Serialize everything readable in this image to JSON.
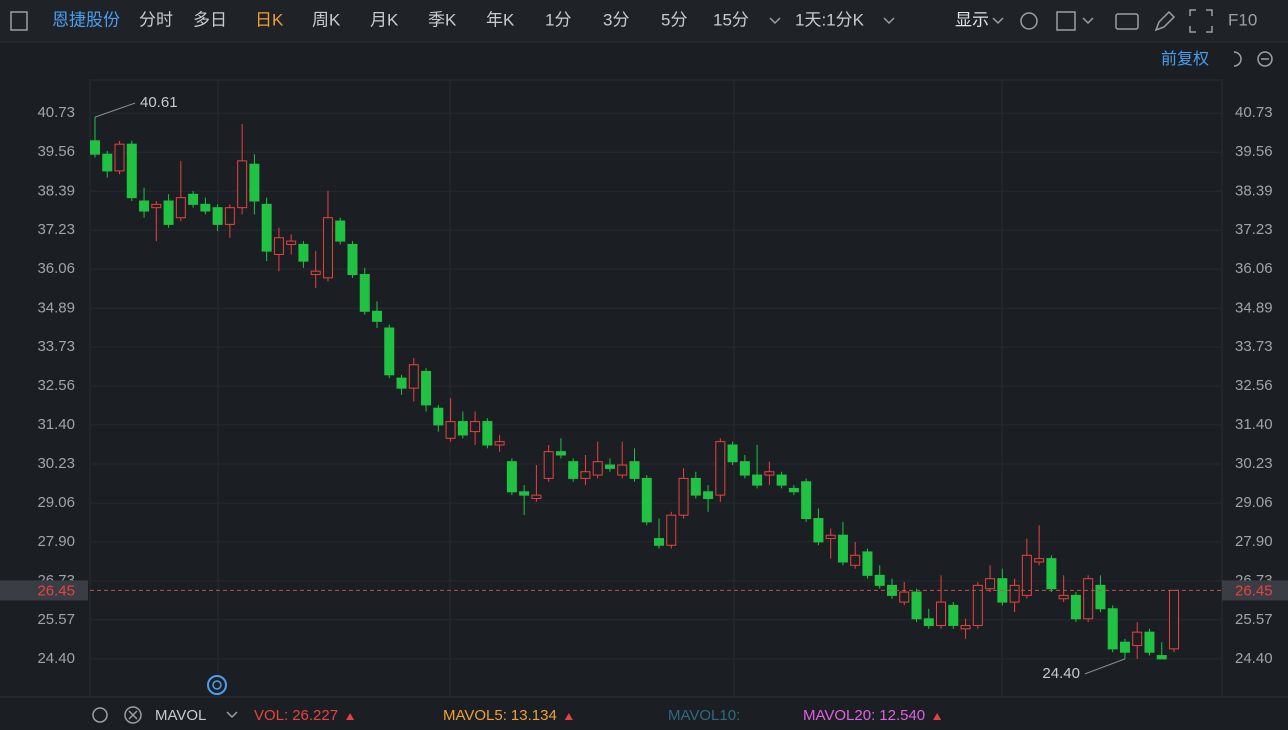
{
  "toolbar": {
    "stock": "恩捷股份",
    "tabs": [
      "分时",
      "多日",
      "日K",
      "周K",
      "月K",
      "季K",
      "年K",
      "1分",
      "3分",
      "5分",
      "15分"
    ],
    "active_tab": 2,
    "period_select": "1天:1分K",
    "display": "显示",
    "f10": "F10"
  },
  "adjust": "前复权",
  "chart_data": {
    "type": "candlestick",
    "open": [
      39.9,
      39.5,
      39.0,
      39.8,
      38.1,
      37.9,
      38.1,
      37.6,
      38.3,
      38.0,
      37.9,
      37.4,
      37.9,
      39.2,
      38.0,
      36.5,
      36.8,
      36.8,
      35.9,
      35.8,
      37.5,
      36.8,
      35.9,
      34.8,
      34.3,
      32.8,
      32.5,
      33.0,
      31.9,
      31.0,
      31.5,
      31.2,
      31.5,
      30.8,
      30.3,
      29.4,
      29.2,
      29.8,
      30.6,
      30.3,
      29.8,
      29.9,
      30.2,
      29.9,
      30.3,
      29.8,
      28.0,
      27.8,
      28.7,
      29.8,
      29.4,
      29.3,
      30.8,
      30.3,
      29.9,
      29.9,
      29.9,
      29.5,
      29.7,
      28.6,
      28.0,
      28.1,
      27.2,
      27.6,
      26.9,
      26.6,
      26.1,
      26.4,
      25.6,
      25.4,
      26.0,
      25.3,
      25.4,
      26.5,
      26.8,
      26.1,
      26.3,
      27.3,
      27.4,
      26.2,
      26.3,
      25.6,
      26.6,
      25.9,
      24.9,
      24.8,
      25.2,
      24.5,
      24.7
    ],
    "high": [
      40.61,
      39.6,
      39.9,
      39.9,
      38.5,
      38.1,
      38.3,
      39.3,
      38.4,
      38.2,
      38.0,
      38.0,
      40.4,
      39.5,
      38.2,
      37.3,
      37.1,
      36.9,
      36.6,
      38.4,
      37.6,
      36.9,
      36.1,
      35.1,
      34.4,
      32.9,
      33.4,
      33.1,
      32.0,
      32.2,
      31.8,
      31.8,
      31.6,
      31.1,
      30.4,
      29.6,
      30.2,
      30.8,
      31.0,
      30.4,
      30.5,
      30.9,
      30.4,
      30.9,
      30.7,
      29.9,
      28.6,
      28.8,
      30.1,
      30.0,
      29.6,
      31.0,
      30.9,
      30.5,
      30.8,
      30.3,
      30.0,
      29.6,
      29.8,
      28.9,
      28.3,
      28.5,
      27.9,
      27.7,
      27.2,
      26.8,
      26.7,
      26.5,
      25.9,
      26.9,
      26.1,
      25.6,
      26.7,
      27.2,
      27.1,
      26.8,
      28.0,
      28.4,
      27.5,
      26.9,
      26.4,
      26.9,
      26.9,
      26.0,
      25.0,
      25.5,
      25.3,
      24.9,
      26.45
    ],
    "low": [
      39.4,
      38.8,
      38.9,
      38.1,
      37.6,
      36.9,
      37.3,
      37.5,
      37.9,
      37.7,
      37.2,
      37.0,
      37.7,
      37.7,
      36.3,
      36.0,
      36.5,
      36.1,
      35.5,
      35.7,
      36.8,
      35.8,
      34.7,
      34.3,
      32.8,
      32.3,
      32.1,
      31.8,
      31.2,
      30.9,
      31.0,
      30.8,
      30.7,
      30.6,
      29.3,
      28.7,
      29.1,
      29.7,
      30.4,
      29.7,
      29.6,
      29.8,
      30.0,
      29.8,
      29.7,
      28.4,
      27.7,
      27.7,
      28.6,
      29.2,
      28.8,
      29.1,
      30.2,
      29.8,
      29.5,
      29.6,
      29.5,
      29.3,
      28.5,
      27.8,
      27.4,
      27.2,
      27.1,
      26.8,
      26.5,
      26.2,
      26.0,
      25.5,
      25.3,
      25.3,
      25.3,
      25.0,
      25.3,
      26.4,
      26.0,
      25.8,
      26.2,
      27.2,
      26.4,
      26.1,
      25.5,
      25.5,
      25.8,
      24.6,
      24.4,
      24.4,
      24.5,
      24.4,
      24.6
    ],
    "close": [
      39.5,
      39.0,
      39.8,
      38.2,
      37.8,
      38.0,
      37.4,
      38.2,
      38.0,
      37.8,
      37.4,
      37.9,
      39.3,
      38.1,
      36.6,
      37.0,
      36.9,
      36.3,
      36.0,
      37.6,
      36.9,
      35.9,
      34.8,
      34.5,
      32.9,
      32.5,
      33.2,
      32.0,
      31.4,
      31.5,
      31.1,
      31.5,
      30.8,
      30.9,
      29.4,
      29.3,
      29.3,
      30.6,
      30.5,
      29.8,
      30.0,
      30.3,
      30.1,
      30.2,
      29.8,
      28.5,
      27.8,
      28.7,
      29.8,
      29.3,
      29.2,
      30.9,
      30.3,
      29.9,
      29.6,
      30.0,
      29.6,
      29.4,
      28.6,
      27.9,
      28.1,
      27.3,
      27.5,
      26.9,
      26.6,
      26.3,
      26.4,
      25.6,
      25.4,
      26.1,
      25.4,
      25.4,
      26.6,
      26.8,
      26.1,
      26.6,
      27.5,
      27.4,
      26.5,
      26.3,
      25.6,
      26.8,
      25.9,
      24.7,
      24.6,
      25.2,
      24.6,
      24.4,
      26.45
    ],
    "ylim": [
      23.26,
      41.72
    ],
    "yticks": [
      40.73,
      39.56,
      38.39,
      37.23,
      36.06,
      34.89,
      33.73,
      32.56,
      {
        "value": 31.4,
        "label": "31.40"
      },
      30.23,
      29.06,
      {
        "value": 27.9,
        "label": "27.90"
      },
      26.73,
      25.57,
      {
        "value": 24.4,
        "label": "24.40"
      }
    ],
    "up_color": "#e8423f",
    "down_color": "#21c244",
    "current_price": 26.45,
    "annotations": [
      {
        "value": 40.61
      },
      {
        "value": 24.4,
        "label": "24.40"
      }
    ]
  },
  "indicator": {
    "name": "MAVOL",
    "items": [
      {
        "label": "VOL:",
        "value": "26.227",
        "color": "#e8423f",
        "arrow": true
      },
      {
        "label": "MAVOL5:",
        "value": "13.134",
        "color": "#f0a030",
        "arrow": true
      },
      {
        "label": "MAVOL10:",
        "color": "#2d6a80",
        "arrow": false
      },
      {
        "label": "MAVOL20:",
        "value": "12.540",
        "color": "#e060e0",
        "arrow": true
      }
    ]
  }
}
